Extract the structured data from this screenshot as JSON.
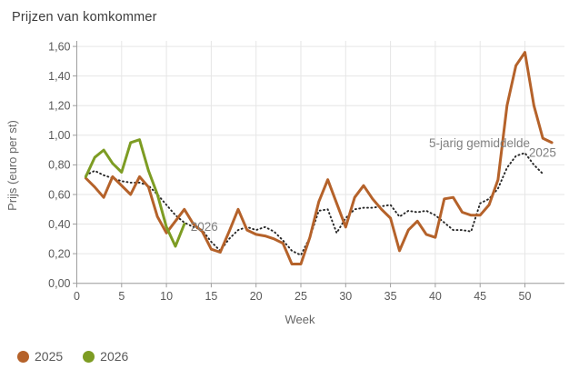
{
  "title": "Prijzen van komkommer",
  "legend": [
    {
      "label": "2025",
      "color": "#b5622a"
    },
    {
      "label": "2026",
      "color": "#7d9c23"
    }
  ],
  "colors": {
    "series_2025": "#b5622a",
    "series_2026": "#7d9c23",
    "series_average": "#262626",
    "grid": "#e6e6e6",
    "axis": "#9e9e9e",
    "tick_text": "#595959",
    "annotation_text": "#7f7f7f",
    "title_text": "#3c3c3c"
  },
  "chart_data": {
    "type": "line",
    "title": "Prijzen van komkommer",
    "xlabel": "Week",
    "ylabel": "Prijs (euro per st)",
    "xlim": [
      0,
      54.5
    ],
    "ylim": [
      0,
      1.6
    ],
    "x_ticks": [
      0,
      5,
      10,
      15,
      20,
      25,
      30,
      35,
      40,
      45,
      50
    ],
    "y_ticks": [
      0,
      0.2,
      0.4,
      0.6,
      0.8,
      1.0,
      1.2,
      1.4,
      1.6
    ],
    "y_tick_labels": [
      "0,00",
      "0,20",
      "0,40",
      "0,60",
      "0,80",
      "1,00",
      "1,20",
      "1,40",
      "1,60"
    ],
    "grid": true,
    "legend_position": "bottom-left",
    "series": [
      {
        "name": "5-jarig gemiddelde",
        "style": "dotted",
        "color": "#262626",
        "x": [
          1,
          2,
          3,
          4,
          5,
          6,
          7,
          8,
          9,
          10,
          11,
          12,
          13,
          14,
          15,
          16,
          17,
          18,
          19,
          20,
          21,
          22,
          23,
          24,
          25,
          26,
          27,
          28,
          29,
          30,
          31,
          32,
          33,
          34,
          35,
          36,
          37,
          38,
          39,
          40,
          41,
          42,
          43,
          44,
          45,
          46,
          47,
          48,
          49,
          50,
          51,
          52
        ],
        "values": [
          0.73,
          0.76,
          0.73,
          0.71,
          0.69,
          0.68,
          0.68,
          0.66,
          0.6,
          0.53,
          0.46,
          0.41,
          0.38,
          0.36,
          0.28,
          0.22,
          0.3,
          0.36,
          0.38,
          0.36,
          0.38,
          0.35,
          0.29,
          0.22,
          0.19,
          0.31,
          0.49,
          0.5,
          0.34,
          0.44,
          0.5,
          0.51,
          0.51,
          0.52,
          0.53,
          0.45,
          0.49,
          0.48,
          0.49,
          0.46,
          0.41,
          0.36,
          0.36,
          0.35,
          0.54,
          0.57,
          0.64,
          0.78,
          0.86,
          0.88,
          0.8,
          0.74
        ]
      },
      {
        "name": "2025",
        "style": "solid",
        "color": "#b5622a",
        "x": [
          1,
          2,
          3,
          4,
          5,
          6,
          7,
          8,
          9,
          10,
          11,
          12,
          13,
          14,
          15,
          16,
          17,
          18,
          19,
          20,
          21,
          22,
          23,
          24,
          25,
          26,
          27,
          28,
          29,
          30,
          31,
          32,
          33,
          34,
          35,
          36,
          37,
          38,
          39,
          40,
          41,
          42,
          43,
          44,
          45,
          46,
          47,
          48,
          49,
          50,
          51,
          52,
          53
        ],
        "values": [
          0.71,
          0.65,
          0.58,
          0.72,
          0.66,
          0.6,
          0.72,
          0.65,
          0.45,
          0.34,
          0.42,
          0.5,
          0.4,
          0.35,
          0.23,
          0.21,
          0.35,
          0.5,
          0.36,
          0.33,
          0.32,
          0.3,
          0.27,
          0.13,
          0.13,
          0.31,
          0.55,
          0.7,
          0.54,
          0.38,
          0.58,
          0.66,
          0.57,
          0.5,
          0.44,
          0.22,
          0.36,
          0.42,
          0.33,
          0.31,
          0.57,
          0.58,
          0.48,
          0.46,
          0.46,
          0.53,
          0.7,
          1.2,
          1.47,
          1.56,
          1.2,
          0.98,
          0.95
        ]
      },
      {
        "name": "2026",
        "style": "solid",
        "color": "#7d9c23",
        "x": [
          1,
          2,
          3,
          4,
          5,
          6,
          7,
          8,
          9,
          10,
          11,
          12
        ],
        "values": [
          0.72,
          0.85,
          0.9,
          0.81,
          0.75,
          0.95,
          0.97,
          0.76,
          0.6,
          0.38,
          0.25,
          0.4
        ]
      }
    ],
    "annotations": [
      {
        "text": "2026",
        "week": 12.7,
        "value": 0.355
      },
      {
        "text": "5-jarig gemiddelde",
        "week": 39.3,
        "value": 0.919
      },
      {
        "text": "2025",
        "week": 50.45,
        "value": 0.853
      }
    ]
  }
}
